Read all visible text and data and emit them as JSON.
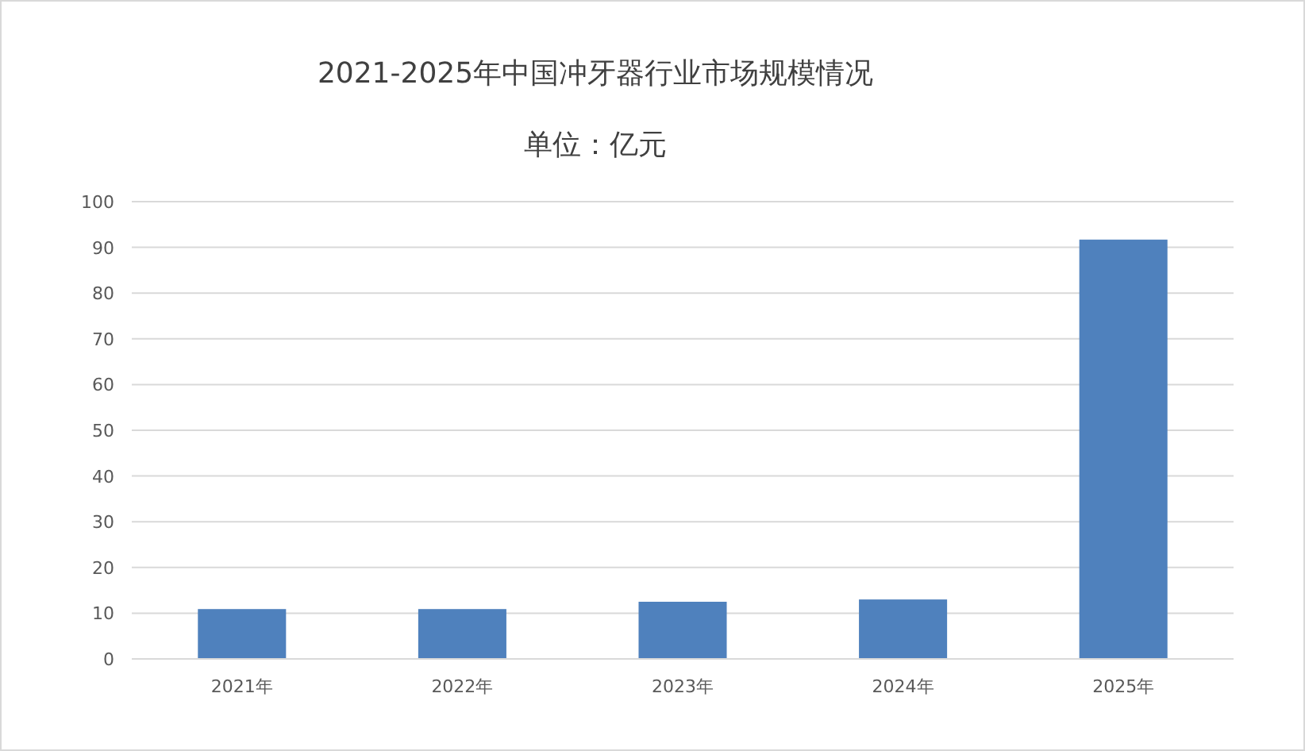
{
  "chart_data": {
    "type": "bar",
    "title": "2021-2025年中国冲牙器行业市场规模情况",
    "subtitle": "单位：亿元",
    "categories": [
      "2021年",
      "2022年",
      "2023年",
      "2024年",
      "2025年"
    ],
    "values": [
      10.9,
      10.9,
      12.5,
      13.0,
      91.7
    ],
    "color": "#4f81bd",
    "ylim": [
      0,
      100
    ],
    "yticks": [
      0,
      10,
      20,
      30,
      40,
      50,
      60,
      70,
      80,
      90,
      100
    ],
    "grid": "y"
  }
}
